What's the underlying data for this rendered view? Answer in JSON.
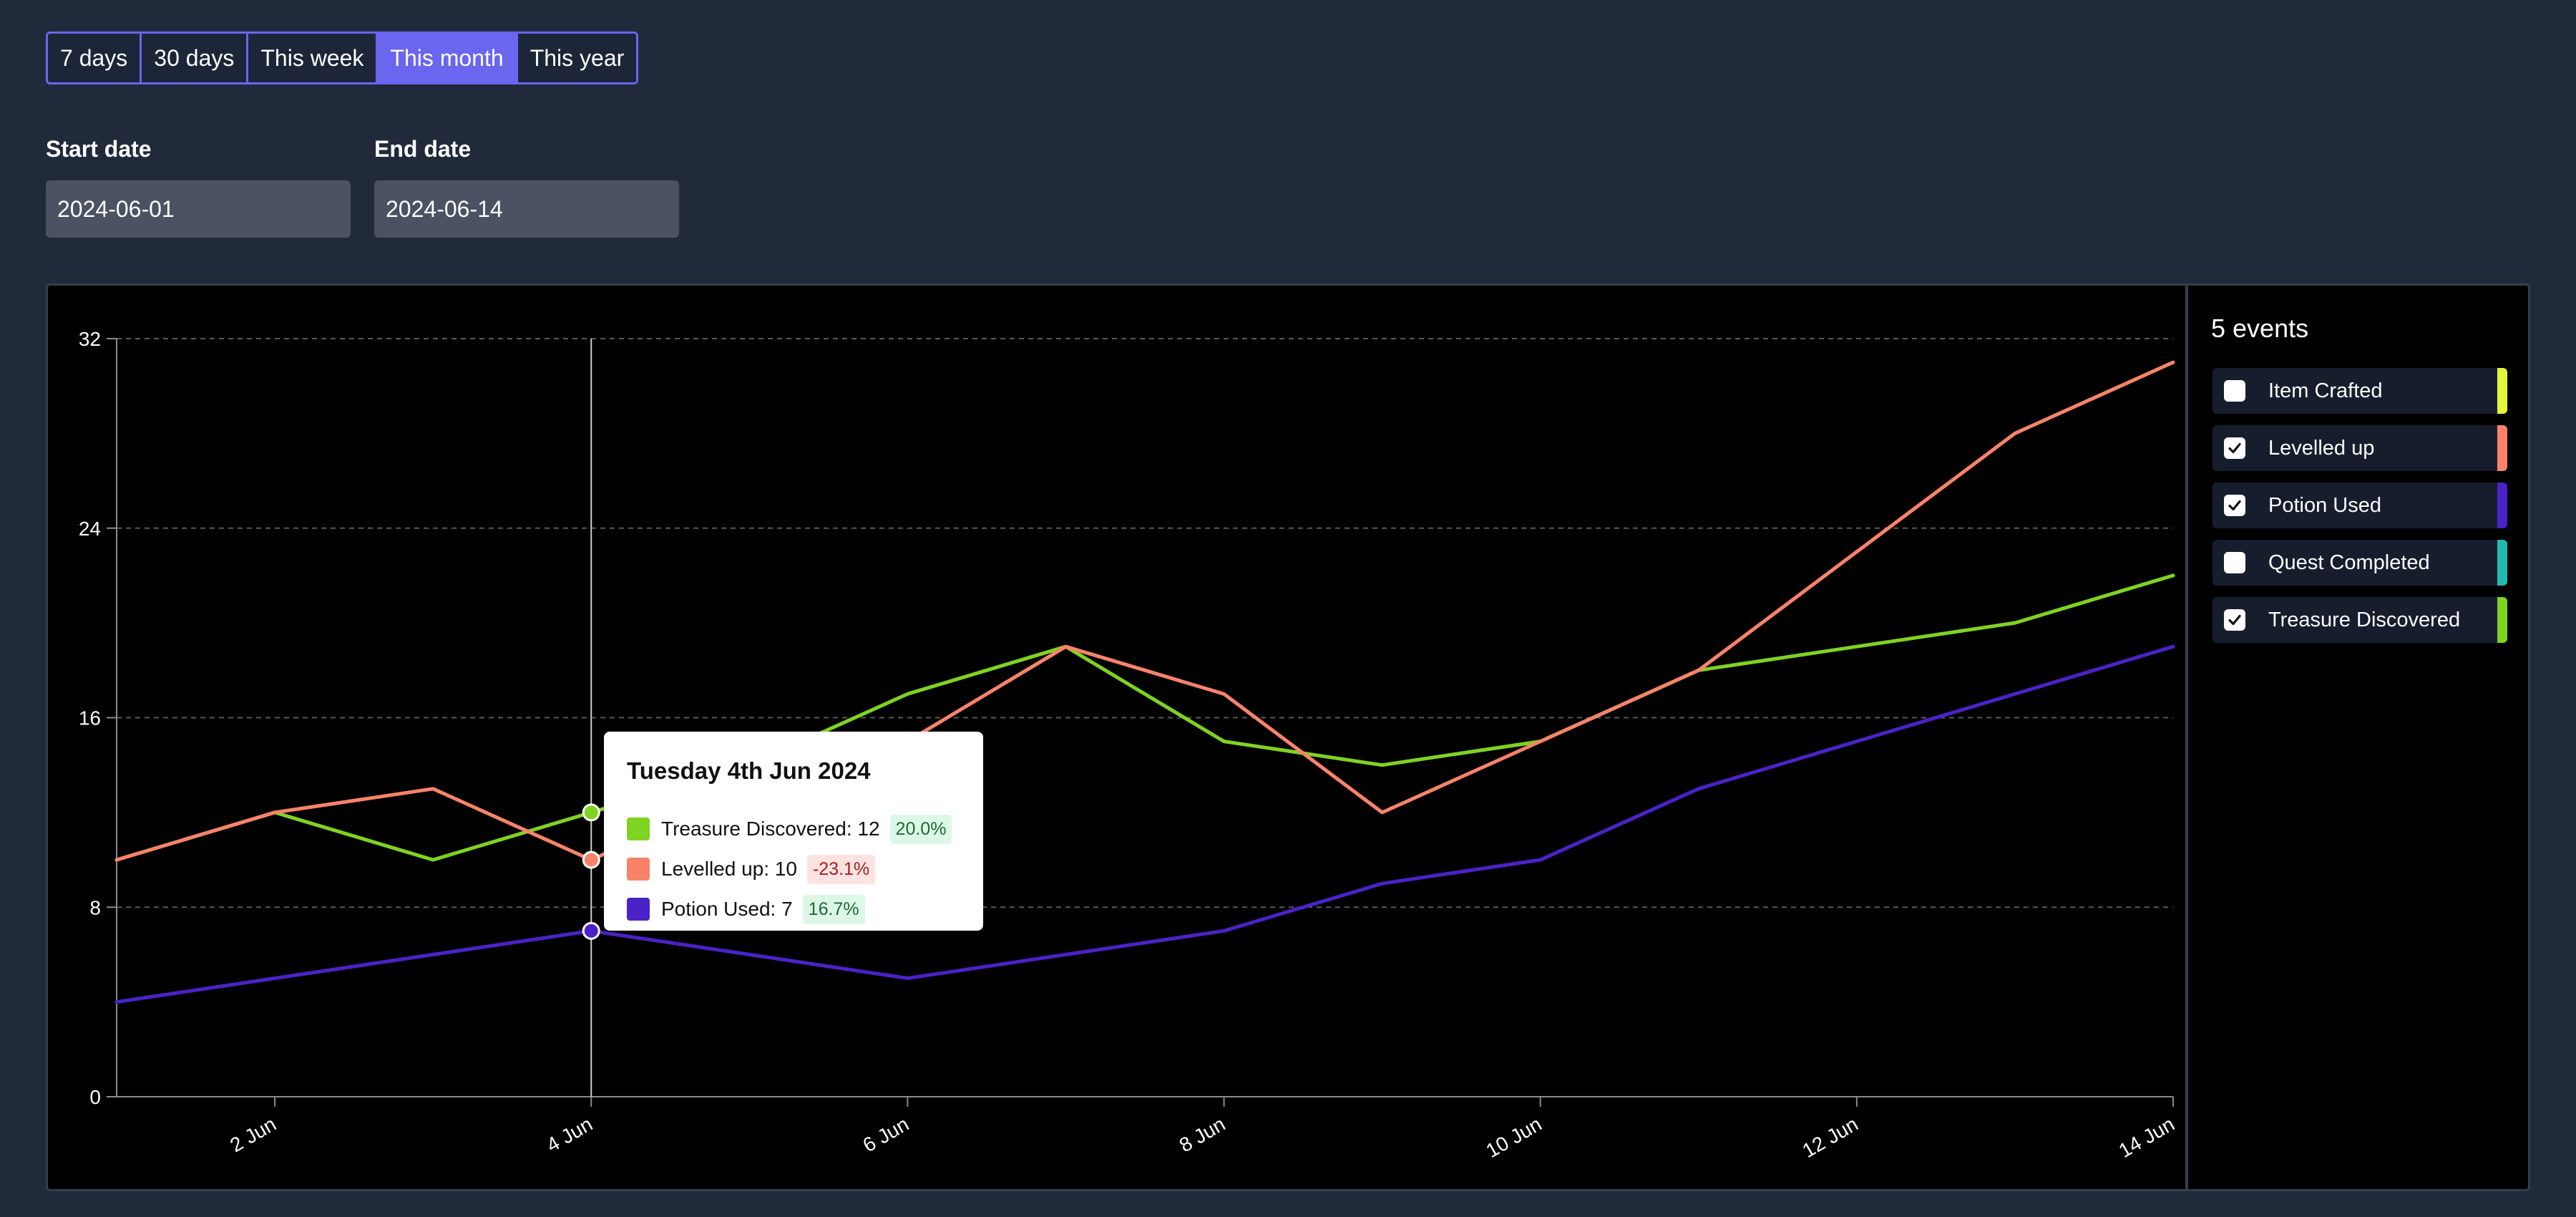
{
  "range_buttons": [
    {
      "label": "7 days",
      "active": false
    },
    {
      "label": "30 days",
      "active": false
    },
    {
      "label": "This week",
      "active": false
    },
    {
      "label": "This month",
      "active": true
    },
    {
      "label": "This year",
      "active": false
    }
  ],
  "start_date": {
    "label": "Start date",
    "value": "2024-06-01"
  },
  "end_date": {
    "label": "End date",
    "value": "2024-06-14"
  },
  "legend": {
    "title": "5 events",
    "items": [
      {
        "label": "Item Crafted",
        "checked": false,
        "color": "#e4f53b"
      },
      {
        "label": "Levelled up",
        "checked": true,
        "color": "#f98369"
      },
      {
        "label": "Potion Used",
        "checked": true,
        "color": "#4a22c8"
      },
      {
        "label": "Quest Completed",
        "checked": false,
        "color": "#23b9b2"
      },
      {
        "label": "Treasure Discovered",
        "checked": true,
        "color": "#7fd321"
      }
    ]
  },
  "tooltip": {
    "title": "Tuesday 4th Jun 2024",
    "rows": [
      {
        "text": "Treasure Discovered: 12",
        "badge": "20.0%",
        "color": "#7fd321",
        "badge_bg": "#ddf7e6",
        "badge_fg": "#1b6b3a"
      },
      {
        "text": "Levelled up: 10",
        "badge": "-23.1%",
        "color": "#f98369",
        "badge_bg": "#fde2e2",
        "badge_fg": "#a51f1f"
      },
      {
        "text": "Potion Used: 7",
        "badge": "16.7%",
        "color": "#4a22c8",
        "badge_bg": "#ddf7e6",
        "badge_fg": "#1b6b3a"
      }
    ]
  },
  "chart_data": {
    "type": "line",
    "x": [
      "2024-06-01",
      "2024-06-02",
      "2024-06-03",
      "2024-06-04",
      "2024-06-05",
      "2024-06-06",
      "2024-06-07",
      "2024-06-08",
      "2024-06-09",
      "2024-06-10",
      "2024-06-11",
      "2024-06-12",
      "2024-06-13",
      "2024-06-14"
    ],
    "x_tick_labels": [
      {
        "date": "2024-06-02",
        "label": "2 Jun"
      },
      {
        "date": "2024-06-04",
        "label": "4 Jun"
      },
      {
        "date": "2024-06-06",
        "label": "6 Jun"
      },
      {
        "date": "2024-06-08",
        "label": "8 Jun"
      },
      {
        "date": "2024-06-10",
        "label": "10 Jun"
      },
      {
        "date": "2024-06-12",
        "label": "12 Jun"
      },
      {
        "date": "2024-06-14",
        "label": "14 Jun"
      }
    ],
    "y_ticks": [
      0,
      8,
      16,
      24,
      32
    ],
    "ylim": [
      0,
      32
    ],
    "grid": true,
    "hover_date": "2024-06-04",
    "series": [
      {
        "name": "Treasure Discovered",
        "color": "#7fd321",
        "values": [
          10,
          12,
          10,
          12,
          14,
          17,
          19,
          15,
          14,
          15,
          18,
          19,
          20,
          22
        ]
      },
      {
        "name": "Levelled up",
        "color": "#f98369",
        "values": [
          10,
          12,
          13,
          10,
          13,
          15,
          19,
          17,
          12,
          15,
          18,
          23,
          28,
          31
        ]
      },
      {
        "name": "Potion Used",
        "color": "#4a22c8",
        "values": [
          4,
          5,
          6,
          7,
          6,
          5,
          6,
          7,
          9,
          10,
          13,
          15,
          17,
          19
        ]
      }
    ]
  }
}
